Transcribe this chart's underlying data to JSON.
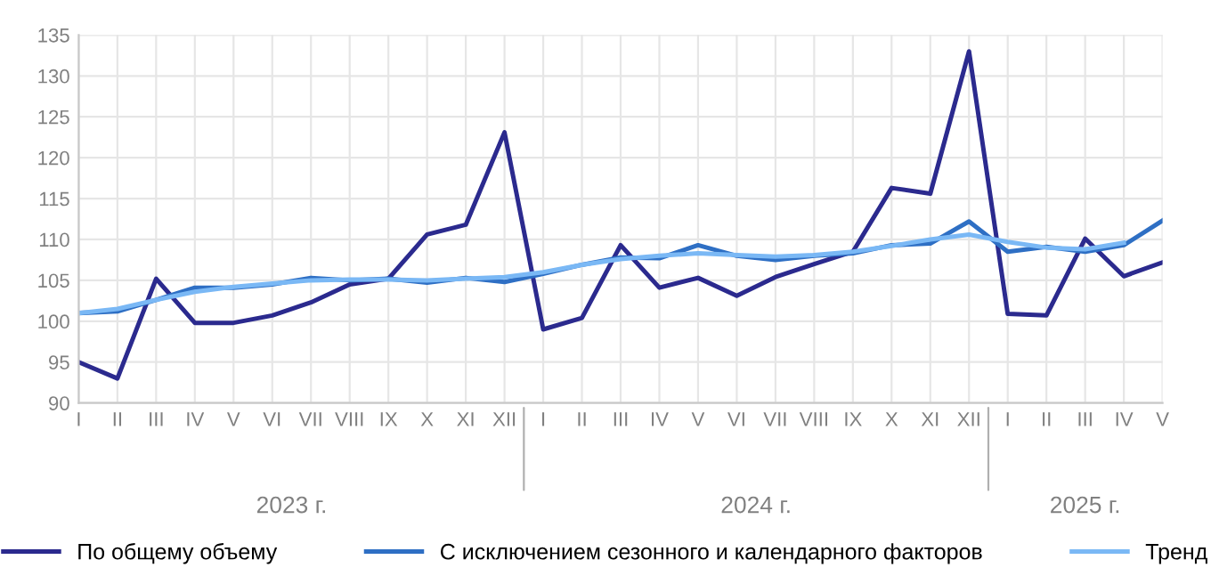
{
  "chart_data": {
    "type": "line",
    "categories": [
      "I",
      "II",
      "III",
      "IV",
      "V",
      "VI",
      "VII",
      "VIII",
      "IX",
      "X",
      "XI",
      "XII",
      "I",
      "II",
      "III",
      "IV",
      "V",
      "VI",
      "VII",
      "VIII",
      "IX",
      "X",
      "XI",
      "XII",
      "I",
      "II",
      "III",
      "IV",
      "V"
    ],
    "series": [
      {
        "name": "По общему объему",
        "color": "#2b2a8e",
        "values": [
          95,
          93,
          105.2,
          99.8,
          99.8,
          100.7,
          102.3,
          104.5,
          105.2,
          110.6,
          111.8,
          123.1,
          99,
          100.4,
          109.3,
          104.1,
          105.3,
          103.1,
          105.4,
          107,
          108.5,
          116.3,
          115.6,
          133,
          100.9,
          100.7,
          110.1,
          105.5,
          107.2
        ]
      },
      {
        "name": "С исключением сезонного и календарного факторов",
        "color": "#2e6fc4",
        "values": [
          101,
          101.2,
          102.6,
          104.1,
          104.1,
          104.5,
          105.3,
          105,
          105.2,
          104.7,
          105.3,
          104.8,
          105.8,
          106.9,
          107.8,
          107.7,
          109.3,
          108,
          107.5,
          108,
          108.3,
          109.3,
          109.5,
          112.2,
          108.5,
          109.1,
          108.5,
          109.3,
          112.3
        ]
      },
      {
        "name": "Тренд",
        "color": "#7ab8f5",
        "values": [
          101,
          101.5,
          102.6,
          103.6,
          104.2,
          104.6,
          105,
          105.1,
          105.1,
          105,
          105.2,
          105.4,
          106,
          106.9,
          107.6,
          108,
          108.3,
          108.1,
          107.9,
          108.1,
          108.5,
          109.2,
          110,
          110.6,
          109.7,
          109,
          108.8,
          109.6,
          null
        ]
      }
    ],
    "ylim": [
      90,
      135
    ],
    "yticks": [
      90,
      95,
      100,
      105,
      110,
      115,
      120,
      125,
      130,
      135
    ],
    "annotations": [
      "2023 г.",
      "2024 г.",
      "2025 г."
    ],
    "grid": true,
    "legend": "bottom",
    "marker": "none",
    "line_style": "solid"
  }
}
